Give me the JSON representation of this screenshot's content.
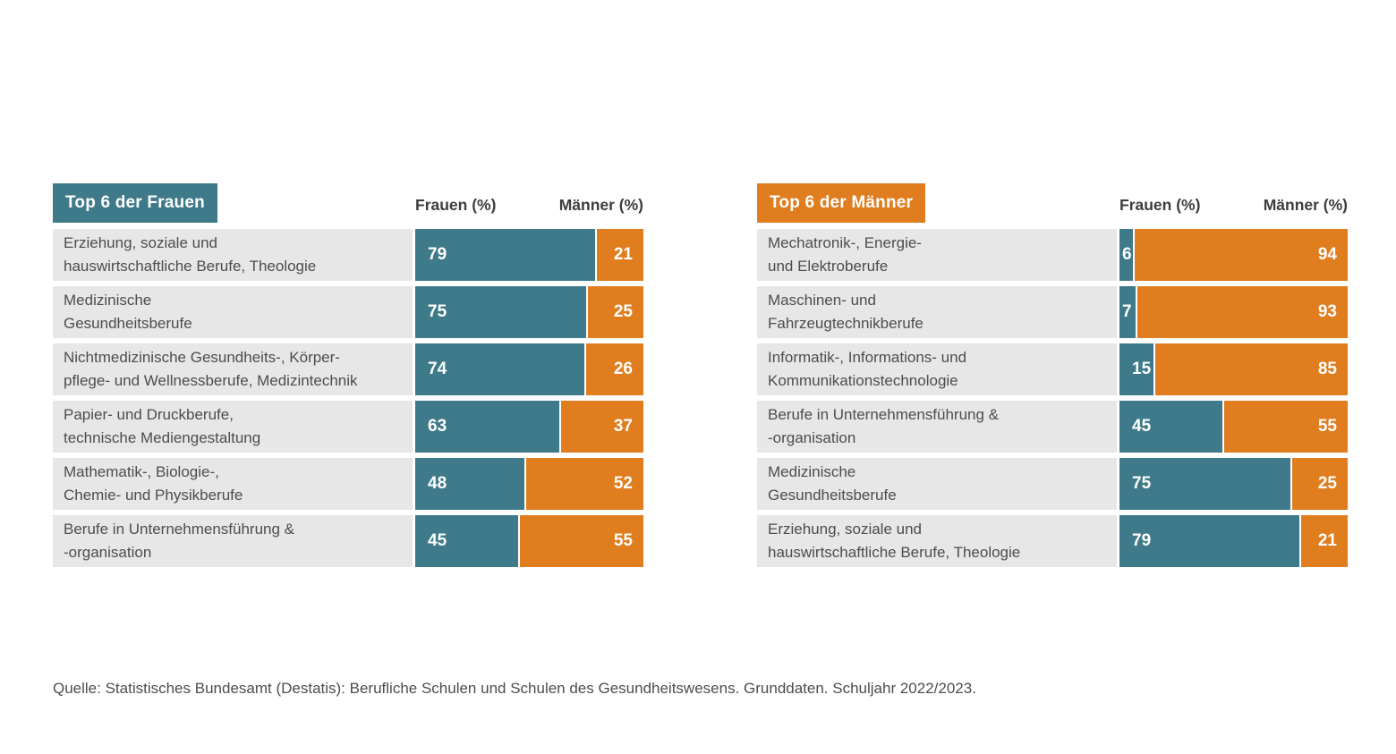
{
  "colors": {
    "teal": "#3f7a8a",
    "orange": "#e07d1e",
    "row_bg": "#e7e7e7",
    "label_text": "#4d4d4d",
    "header_text": "#3d3d3d",
    "value_text": "#ffffff"
  },
  "panels": [
    {
      "title": "Top 6 der Frauen",
      "col_women": "Frauen (%)",
      "col_men": "Männer (%)",
      "rows": [
        {
          "label": "Erziehung, soziale und\nhauswirtschaftliche Berufe, Theologie",
          "women": 79,
          "men": 21
        },
        {
          "label": "Medizinische\nGesundheitsberufe",
          "women": 75,
          "men": 25
        },
        {
          "label": "Nichtmedizinische Gesundheits-, Körper-\npflege- und Wellnessberufe, Medizintechnik",
          "women": 74,
          "men": 26
        },
        {
          "label": "Papier- und Druckberufe,\ntechnische Mediengestaltung",
          "women": 63,
          "men": 37
        },
        {
          "label": "Mathematik-, Biologie-,\nChemie- und Physikberufe",
          "women": 48,
          "men": 52
        },
        {
          "label": "Berufe in Unternehmensführung &\n-organisation",
          "women": 45,
          "men": 55
        }
      ]
    },
    {
      "title": "Top 6 der Männer",
      "col_women": "Frauen (%)",
      "col_men": "Männer (%)",
      "rows": [
        {
          "label": "Mechatronik-, Energie-\nund Elektroberufe",
          "women": 6,
          "men": 94
        },
        {
          "label": "Maschinen- und\nFahrzeugtechnikberufe",
          "women": 7,
          "men": 93
        },
        {
          "label": "Informatik-, Informations- und\nKommunikationstechnologie",
          "women": 15,
          "men": 85
        },
        {
          "label": "Berufe in Unternehmensführung &\n-organisation",
          "women": 45,
          "men": 55
        },
        {
          "label": "Medizinische\nGesundheitsberufe",
          "women": 75,
          "men": 25
        },
        {
          "label": "Erziehung, soziale und\nhauswirtschaftliche Berufe, Theologie",
          "women": 79,
          "men": 21
        }
      ]
    }
  ],
  "source": "Quelle: Statistisches Bundesamt (Destatis): Berufliche Schulen und Schulen des Gesundheitswesens. Grunddaten. Schuljahr 2022/2023.",
  "chart_data": [
    {
      "type": "bar",
      "orientation": "horizontal",
      "stacked": true,
      "title": "Top 6 der Frauen",
      "categories": [
        "Erziehung, soziale und hauswirtschaftliche Berufe, Theologie",
        "Medizinische Gesundheitsberufe",
        "Nichtmedizinische Gesundheits-, Körperpflege- und Wellnessberufe, Medizintechnik",
        "Papier- und Druckberufe, technische Mediengestaltung",
        "Mathematik-, Biologie-, Chemie- und Physikberufe",
        "Berufe in Unternehmensführung & -organisation"
      ],
      "series": [
        {
          "name": "Frauen (%)",
          "values": [
            79,
            75,
            74,
            63,
            48,
            45
          ],
          "color": "#3f7a8a"
        },
        {
          "name": "Männer (%)",
          "values": [
            21,
            25,
            26,
            37,
            52,
            55
          ],
          "color": "#e07d1e"
        }
      ],
      "xlim": [
        0,
        100
      ],
      "grid": false,
      "legend_position": "top",
      "data_labels": true
    },
    {
      "type": "bar",
      "orientation": "horizontal",
      "stacked": true,
      "title": "Top 6 der Männer",
      "categories": [
        "Mechatronik-, Energie- und Elektroberufe",
        "Maschinen- und Fahrzeugtechnikberufe",
        "Informatik-, Informations- und Kommunikationstechnologie",
        "Berufe in Unternehmensführung & -organisation",
        "Medizinische Gesundheitsberufe",
        "Erziehung, soziale und hauswirtschaftliche Berufe, Theologie"
      ],
      "series": [
        {
          "name": "Frauen (%)",
          "values": [
            6,
            7,
            15,
            45,
            75,
            79
          ],
          "color": "#3f7a8a"
        },
        {
          "name": "Männer (%)",
          "values": [
            94,
            93,
            85,
            55,
            25,
            21
          ],
          "color": "#e07d1e"
        }
      ],
      "xlim": [
        0,
        100
      ],
      "grid": false,
      "legend_position": "top",
      "data_labels": true
    }
  ]
}
